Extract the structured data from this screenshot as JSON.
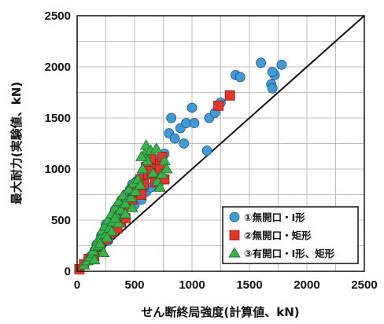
{
  "chart_data": {
    "type": "scatter",
    "xlabel": "せん断終局強度(計算値、kN)",
    "ylabel": "最大耐力(実験値、kN)",
    "xlim": [
      0,
      2500
    ],
    "ylim": [
      0,
      2500
    ],
    "xticks": [
      "0",
      "500",
      "1000",
      "1500",
      "2000",
      "2500"
    ],
    "yticks": [
      "0",
      "500",
      "1000",
      "1500",
      "2000",
      "2500"
    ],
    "grid": true,
    "legend_position": "bottom-right",
    "reference_line": {
      "from": [
        0,
        0
      ],
      "to": [
        2500,
        2500
      ]
    },
    "series": [
      {
        "name": "①無開口・I形",
        "marker": "circle",
        "color": "#3f9bd6",
        "points": [
          [
            120,
            150
          ],
          [
            150,
            200
          ],
          [
            170,
            260
          ],
          [
            200,
            300
          ],
          [
            210,
            350
          ],
          [
            240,
            400
          ],
          [
            250,
            460
          ],
          [
            270,
            300
          ],
          [
            290,
            450
          ],
          [
            300,
            520
          ],
          [
            320,
            560
          ],
          [
            330,
            600
          ],
          [
            350,
            500
          ],
          [
            370,
            650
          ],
          [
            390,
            700
          ],
          [
            400,
            580
          ],
          [
            420,
            720
          ],
          [
            440,
            760
          ],
          [
            460,
            800
          ],
          [
            480,
            850
          ],
          [
            500,
            650
          ],
          [
            520,
            880
          ],
          [
            540,
            900
          ],
          [
            560,
            700
          ],
          [
            580,
            950
          ],
          [
            600,
            780
          ],
          [
            640,
            820
          ],
          [
            660,
            1000
          ],
          [
            700,
            900
          ],
          [
            720,
            1100
          ],
          [
            760,
            1150
          ],
          [
            800,
            1350
          ],
          [
            820,
            1500
          ],
          [
            850,
            1300
          ],
          [
            900,
            1400
          ],
          [
            930,
            1250
          ],
          [
            950,
            1450
          ],
          [
            1000,
            1600
          ],
          [
            1020,
            1450
          ],
          [
            1130,
            1180
          ],
          [
            1150,
            1500
          ],
          [
            1200,
            1550
          ],
          [
            1250,
            1650
          ],
          [
            1380,
            1920
          ],
          [
            1420,
            1900
          ],
          [
            1600,
            2040
          ],
          [
            1690,
            1830
          ],
          [
            1700,
            1790
          ],
          [
            1720,
            1920
          ],
          [
            1780,
            2020
          ],
          [
            1700,
            1950
          ]
        ]
      },
      {
        "name": "②無開口・矩形",
        "marker": "square",
        "color": "#e8332c",
        "points": [
          [
            20,
            20
          ],
          [
            60,
            70
          ],
          [
            100,
            120
          ],
          [
            150,
            150
          ],
          [
            200,
            250
          ],
          [
            260,
            320
          ],
          [
            300,
            380
          ],
          [
            350,
            420
          ],
          [
            380,
            480
          ],
          [
            420,
            520
          ],
          [
            450,
            640
          ],
          [
            480,
            700
          ],
          [
            520,
            780
          ],
          [
            550,
            900
          ],
          [
            580,
            850
          ],
          [
            600,
            1020
          ],
          [
            620,
            950
          ],
          [
            650,
            980
          ],
          [
            680,
            870
          ],
          [
            700,
            1050
          ],
          [
            720,
            1000
          ],
          [
            740,
            1120
          ],
          [
            760,
            900
          ],
          [
            560,
            750
          ],
          [
            640,
            1100
          ],
          [
            1230,
            1620
          ],
          [
            1330,
            1720
          ]
        ]
      },
      {
        "name": "③有開口・I形、矩形",
        "marker": "triangle",
        "color": "#39b44a",
        "points": [
          [
            60,
            60
          ],
          [
            90,
            100
          ],
          [
            110,
            140
          ],
          [
            130,
            170
          ],
          [
            140,
            200
          ],
          [
            160,
            240
          ],
          [
            180,
            300
          ],
          [
            190,
            250
          ],
          [
            210,
            330
          ],
          [
            220,
            400
          ],
          [
            240,
            440
          ],
          [
            250,
            360
          ],
          [
            270,
            500
          ],
          [
            280,
            420
          ],
          [
            300,
            560
          ],
          [
            310,
            480
          ],
          [
            330,
            620
          ],
          [
            340,
            540
          ],
          [
            360,
            680
          ],
          [
            380,
            600
          ],
          [
            400,
            740
          ],
          [
            420,
            660
          ],
          [
            450,
            800
          ],
          [
            470,
            720
          ],
          [
            490,
            860
          ],
          [
            510,
            780
          ],
          [
            530,
            900
          ],
          [
            550,
            840
          ],
          [
            570,
            1000
          ],
          [
            590,
            1150
          ],
          [
            600,
            1230
          ],
          [
            610,
            1080
          ],
          [
            640,
            1180
          ],
          [
            660,
            960
          ],
          [
            700,
            880
          ],
          [
            720,
            820
          ],
          [
            740,
            950
          ],
          [
            760,
            1080
          ],
          [
            780,
            1000
          ],
          [
            300,
            390
          ],
          [
            360,
            470
          ],
          [
            420,
            560
          ],
          [
            480,
            620
          ],
          [
            200,
            270
          ],
          [
            260,
            330
          ],
          [
            230,
            180
          ],
          [
            150,
            110
          ],
          [
            330,
            520
          ],
          [
            560,
            1120
          ],
          [
            690,
            1200
          ]
        ]
      }
    ]
  }
}
